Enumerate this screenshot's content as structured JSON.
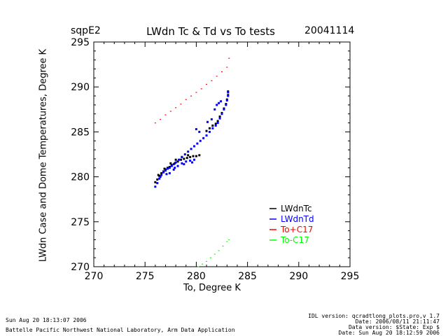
{
  "header": {
    "site": "sqpE2",
    "date_stamp": "20041114"
  },
  "footer": {
    "left_line1": "Sun Aug 20 18:13:07 2006",
    "left_line2": "Battelle Pacific Northwest National Laboratory, Arm Data Application",
    "right_line1": "IDL version: qcradtlong_plots.pro,v 1.7",
    "right_line2": "Date: 2006/08/11 21:11:47",
    "right_line3": "Data version: $State: Exp $",
    "right_line4": "Date: Sun Aug 20 18:12:59 2006"
  },
  "colors": {
    "LWdnTc": "#000000",
    "LWdnTd": "#0000ff",
    "To+C17": "#ff0000",
    "To-C17": "#00ff00"
  },
  "chart_data": {
    "type": "scatter",
    "title": "LWdn Tc & Td vs To tests",
    "xlabel": "To, Degree K",
    "ylabel": "LWdn Case and Dome Temperatures, Degree K",
    "xlim": [
      270,
      295
    ],
    "ylim": [
      270,
      295
    ],
    "xticks": [
      "270",
      "275",
      "280",
      "285",
      "290",
      "295"
    ],
    "yticks": [
      "270",
      "275",
      "280",
      "285",
      "290",
      "295"
    ],
    "legend_position": "lower-right",
    "series": [
      {
        "name": "LWdnTc",
        "color": "#000000",
        "points": [
          [
            276.0,
            279.4
          ],
          [
            276.2,
            279.7
          ],
          [
            276.4,
            280.1
          ],
          [
            276.6,
            280.4
          ],
          [
            276.8,
            280.6
          ],
          [
            277.0,
            280.8
          ],
          [
            277.2,
            281.0
          ],
          [
            277.4,
            281.1
          ],
          [
            277.6,
            281.3
          ],
          [
            277.9,
            281.5
          ],
          [
            278.2,
            281.7
          ],
          [
            278.5,
            281.9
          ],
          [
            278.8,
            282.0
          ],
          [
            279.1,
            282.1
          ],
          [
            279.4,
            282.2
          ],
          [
            279.7,
            282.3
          ],
          [
            280.0,
            282.3
          ],
          [
            280.3,
            282.4
          ],
          [
            281.0,
            285.1
          ],
          [
            281.3,
            285.4
          ],
          [
            281.6,
            285.7
          ],
          [
            281.9,
            285.9
          ],
          [
            282.1,
            286.2
          ],
          [
            282.3,
            286.7
          ],
          [
            282.5,
            287.1
          ],
          [
            282.7,
            287.6
          ],
          [
            282.9,
            288.1
          ],
          [
            283.0,
            288.6
          ],
          [
            283.1,
            289.1
          ],
          [
            283.1,
            289.5
          ],
          [
            276.3,
            280.2
          ],
          [
            276.9,
            280.9
          ],
          [
            277.5,
            281.5
          ],
          [
            278.0,
            281.9
          ],
          [
            278.6,
            282.2
          ],
          [
            279.2,
            282.4
          ]
        ]
      },
      {
        "name": "LWdnTd",
        "color": "#0000ff",
        "points": [
          [
            276.0,
            278.9
          ],
          [
            276.2,
            279.3
          ],
          [
            276.4,
            279.8
          ],
          [
            276.6,
            280.2
          ],
          [
            276.8,
            280.5
          ],
          [
            277.0,
            280.7
          ],
          [
            277.2,
            280.9
          ],
          [
            277.4,
            281.0
          ],
          [
            277.6,
            281.2
          ],
          [
            277.8,
            281.4
          ],
          [
            278.0,
            281.6
          ],
          [
            278.3,
            281.9
          ],
          [
            278.6,
            282.2
          ],
          [
            278.9,
            282.5
          ],
          [
            279.2,
            282.8
          ],
          [
            279.5,
            283.1
          ],
          [
            279.8,
            283.4
          ],
          [
            280.1,
            283.7
          ],
          [
            280.4,
            284.0
          ],
          [
            280.7,
            284.3
          ],
          [
            281.0,
            284.6
          ],
          [
            281.3,
            285.0
          ],
          [
            281.6,
            285.4
          ],
          [
            281.9,
            285.7
          ],
          [
            282.1,
            286.0
          ],
          [
            282.3,
            286.5
          ],
          [
            282.5,
            287.0
          ],
          [
            282.7,
            287.5
          ],
          [
            282.9,
            288.0
          ],
          [
            283.0,
            288.5
          ],
          [
            283.1,
            289.0
          ],
          [
            283.1,
            289.4
          ],
          [
            281.8,
            287.5
          ],
          [
            282.0,
            288.0
          ],
          [
            282.2,
            288.2
          ],
          [
            282.4,
            288.4
          ],
          [
            277.4,
            280.4
          ],
          [
            277.8,
            280.8
          ],
          [
            278.2,
            281.2
          ],
          [
            278.6,
            281.5
          ],
          [
            279.0,
            281.7
          ],
          [
            279.4,
            281.8
          ],
          [
            279.8,
            281.9
          ],
          [
            276.5,
            280.0
          ],
          [
            277.1,
            280.3
          ],
          [
            277.9,
            281.0
          ],
          [
            278.8,
            281.4
          ],
          [
            279.6,
            281.6
          ],
          [
            280.0,
            285.3
          ],
          [
            280.3,
            285.0
          ],
          [
            281.1,
            286.1
          ],
          [
            281.5,
            286.4
          ]
        ]
      },
      {
        "name": "To+C17",
        "color": "#ff0000",
        "points": [
          [
            276.0,
            286.0
          ],
          [
            276.5,
            286.4
          ],
          [
            277.0,
            286.9
          ],
          [
            277.5,
            287.3
          ],
          [
            278.0,
            287.7
          ],
          [
            278.5,
            288.1
          ],
          [
            279.0,
            288.6
          ],
          [
            279.5,
            289.0
          ],
          [
            280.0,
            289.4
          ],
          [
            280.5,
            289.8
          ],
          [
            281.0,
            290.3
          ],
          [
            281.5,
            290.7
          ],
          [
            282.0,
            291.2
          ],
          [
            282.5,
            291.7
          ],
          [
            283.0,
            292.2
          ],
          [
            283.2,
            293.2
          ]
        ]
      },
      {
        "name": "To-C17",
        "color": "#00ff00",
        "points": [
          [
            280.2,
            270.0
          ],
          [
            280.6,
            270.3
          ],
          [
            281.0,
            270.6
          ],
          [
            281.4,
            271.0
          ],
          [
            281.8,
            271.4
          ],
          [
            282.2,
            271.8
          ],
          [
            282.6,
            272.3
          ],
          [
            283.0,
            272.8
          ],
          [
            283.2,
            273.0
          ]
        ]
      }
    ]
  }
}
